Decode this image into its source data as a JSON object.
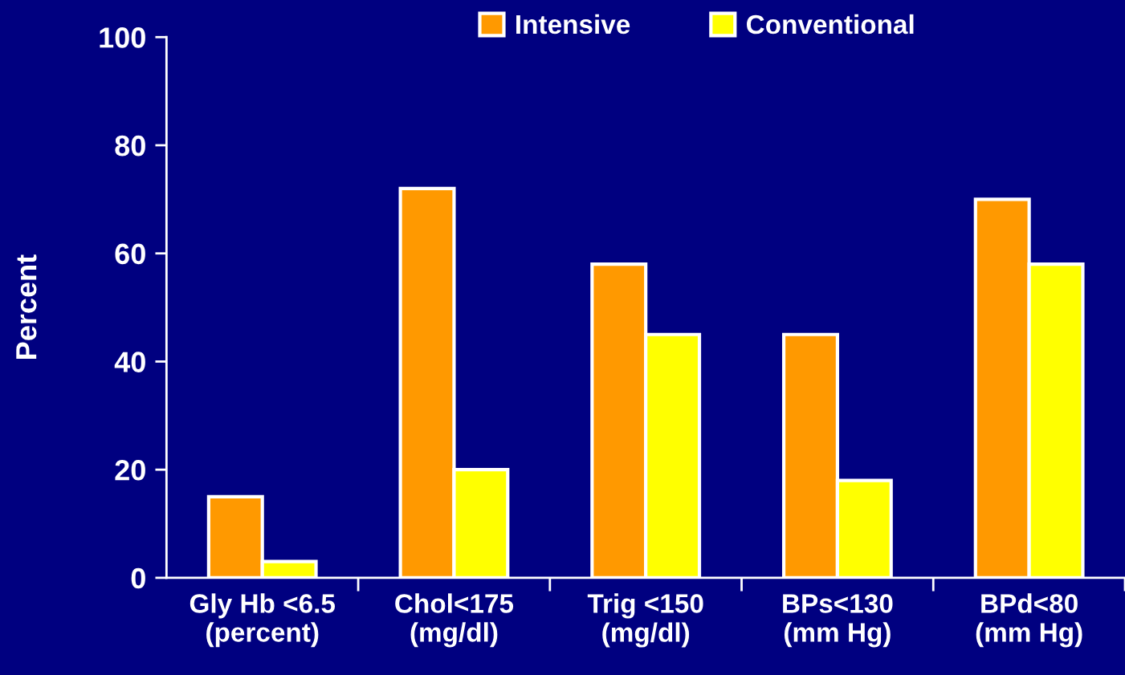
{
  "chart_data": {
    "type": "bar",
    "categories": [
      "Gly Hb <6.5\n(percent)",
      "Chol<175\n(mg/dl)",
      "Trig <150\n(mg/dl)",
      "BPs<130\n(mm Hg)",
      "BPd<80\n(mm Hg)"
    ],
    "series": [
      {
        "name": "Intensive",
        "color": "#ff9900",
        "values": [
          15,
          72,
          58,
          45,
          70
        ]
      },
      {
        "name": "Conventional",
        "color": "#ffff00",
        "values": [
          3,
          20,
          45,
          18,
          58
        ]
      }
    ],
    "ylabel": "Percent",
    "ylim": [
      0,
      100
    ],
    "yticks": [
      0,
      20,
      40,
      60,
      80,
      100
    ],
    "grid": false,
    "legend": "top right"
  }
}
